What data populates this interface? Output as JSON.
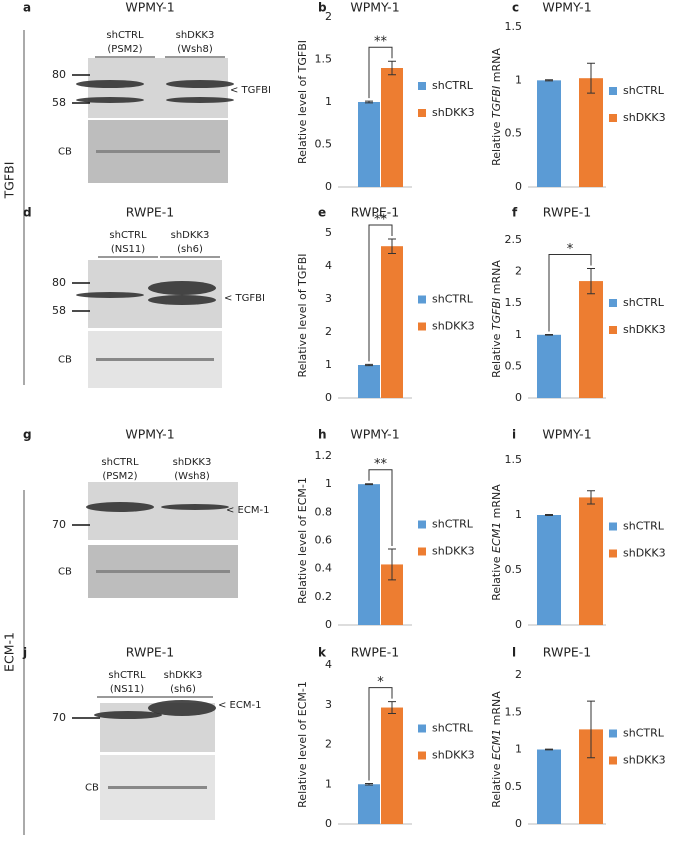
{
  "side_labels": [
    "TGFBI",
    "ECM-1"
  ],
  "blots": [
    {
      "panel": "a",
      "title": "WPMY-1",
      "lanes": [
        [
          "shCTRL",
          "(PSM2)"
        ],
        [
          "shDKK3",
          "(Wsh8)"
        ]
      ],
      "markers": [
        "80",
        "58"
      ],
      "band": "< TGFBI",
      "cb": "CB"
    },
    {
      "panel": "d",
      "title": "RWPE-1",
      "lanes": [
        [
          "shCTRL",
          "(NS11)"
        ],
        [
          "shDKK3",
          "(sh6)"
        ]
      ],
      "markers": [
        "80",
        "58"
      ],
      "band": "< TGFBI",
      "cb": "CB"
    },
    {
      "panel": "g",
      "title": "WPMY-1",
      "lanes": [
        [
          "shCTRL",
          "(PSM2)"
        ],
        [
          "shDKK3",
          "(Wsh8)"
        ]
      ],
      "markers": [
        "70"
      ],
      "band": "< ECM-1",
      "cb": "CB"
    },
    {
      "panel": "j",
      "title": "RWPE-1",
      "lanes": [
        [
          "shCTRL",
          "(NS11)"
        ],
        [
          "shDKK3",
          "(sh6)"
        ]
      ],
      "markers": [
        "70"
      ],
      "band": "< ECM-1",
      "cb": "CB"
    }
  ],
  "chart_data": [
    {
      "type": "bar",
      "panel": "b",
      "title": "WPMY-1",
      "ylabel": "Relative level of TGFBI",
      "ylim": [
        0,
        2
      ],
      "yticks": [
        0,
        0.5,
        1,
        1.5,
        2
      ],
      "significance": "**",
      "series": [
        {
          "name": "shCTRL",
          "color": "#5b9bd5",
          "values": [
            1
          ],
          "errors": [
            0.01
          ]
        },
        {
          "name": "shDKK3",
          "color": "#ed7d31",
          "values": [
            1.4
          ],
          "errors": [
            0.08
          ]
        }
      ]
    },
    {
      "type": "bar",
      "panel": "c",
      "title": "WPMY-1",
      "ylabel": [
        "Relative ",
        "TGFBI",
        " mRNA"
      ],
      "ylim": [
        0,
        1.5
      ],
      "yticks": [
        0,
        0.5,
        1,
        1.5
      ],
      "series": [
        {
          "name": "shCTRL",
          "color": "#5b9bd5",
          "values": [
            1
          ],
          "errors": [
            0.005
          ]
        },
        {
          "name": "shDKK3",
          "color": "#ed7d31",
          "values": [
            1.02
          ],
          "errors": [
            0.14
          ]
        }
      ]
    },
    {
      "type": "bar",
      "panel": "e",
      "title": "RWPE-1",
      "ylabel": "Relative level of TGFBI",
      "ylim": [
        0,
        5
      ],
      "yticks": [
        0,
        1,
        2,
        3,
        4,
        5
      ],
      "significance": "**",
      "series": [
        {
          "name": "shCTRL",
          "color": "#5b9bd5",
          "values": [
            1
          ],
          "errors": [
            0.02
          ]
        },
        {
          "name": "shDKK3",
          "color": "#ed7d31",
          "values": [
            4.6
          ],
          "errors": [
            0.22
          ]
        }
      ]
    },
    {
      "type": "bar",
      "panel": "f",
      "title": "RWPE-1",
      "ylabel": [
        "Relative ",
        "TGFBI",
        " mRNA"
      ],
      "ylim": [
        0,
        2.5
      ],
      "yticks": [
        0,
        0.5,
        1,
        1.5,
        2,
        2.5
      ],
      "significance": "*",
      "series": [
        {
          "name": "shCTRL",
          "color": "#5b9bd5",
          "values": [
            1
          ],
          "errors": [
            0.005
          ]
        },
        {
          "name": "shDKK3",
          "color": "#ed7d31",
          "values": [
            1.85
          ],
          "errors": [
            0.2
          ]
        }
      ]
    },
    {
      "type": "bar",
      "panel": "h",
      "title": "WPMY-1",
      "ylabel": "Relative level of ECM-1",
      "ylim": [
        0,
        1.2
      ],
      "yticks": [
        0,
        0.2,
        0.4,
        0.6,
        0.8,
        1,
        1.2
      ],
      "significance": "**",
      "series": [
        {
          "name": "shCTRL",
          "color": "#5b9bd5",
          "values": [
            1
          ],
          "errors": [
            0.003
          ]
        },
        {
          "name": "shDKK3",
          "color": "#ed7d31",
          "values": [
            0.43
          ],
          "errors": [
            0.11
          ]
        }
      ]
    },
    {
      "type": "bar",
      "panel": "i",
      "title": "WPMY-1",
      "ylabel": [
        "Relative ",
        "ECM1",
        " mRNA"
      ],
      "ylim": [
        0,
        1.5
      ],
      "yticks": [
        0,
        0.5,
        1,
        1.5
      ],
      "series": [
        {
          "name": "shCTRL",
          "color": "#5b9bd5",
          "values": [
            1
          ],
          "errors": [
            0.005
          ]
        },
        {
          "name": "shDKK3",
          "color": "#ed7d31",
          "values": [
            1.16
          ],
          "errors": [
            0.06
          ]
        }
      ]
    },
    {
      "type": "bar",
      "panel": "k",
      "title": "RWPE-1",
      "ylabel": "Relative level of ECM-1",
      "ylim": [
        0,
        4
      ],
      "yticks": [
        0,
        1,
        2,
        3,
        4
      ],
      "significance": "*",
      "series": [
        {
          "name": "shCTRL",
          "color": "#5b9bd5",
          "values": [
            1
          ],
          "errors": [
            0.02
          ]
        },
        {
          "name": "shDKK3",
          "color": "#ed7d31",
          "values": [
            2.93
          ],
          "errors": [
            0.15
          ]
        }
      ]
    },
    {
      "type": "bar",
      "panel": "l",
      "title": "RWPE-1",
      "ylabel": [
        "Relative ",
        "ECM1",
        " mRNA"
      ],
      "ylim": [
        0,
        2
      ],
      "yticks": [
        0,
        0.5,
        1,
        1.5,
        2
      ],
      "series": [
        {
          "name": "shCTRL",
          "color": "#5b9bd5",
          "values": [
            1
          ],
          "errors": [
            0.005
          ]
        },
        {
          "name": "shDKK3",
          "color": "#ed7d31",
          "values": [
            1.27
          ],
          "errors": [
            0.38
          ]
        }
      ]
    }
  ]
}
